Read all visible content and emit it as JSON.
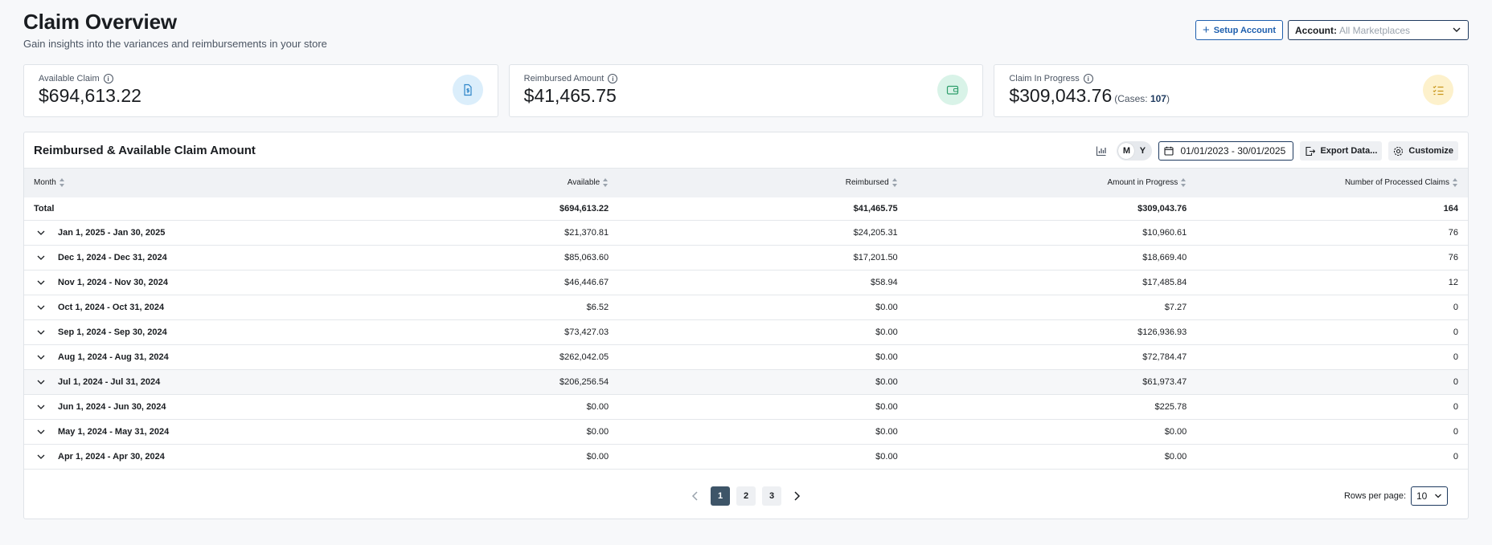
{
  "header": {
    "title": "Claim Overview",
    "subtitle": "Gain insights into the variances and reimbursements in your store"
  },
  "actions": {
    "setup_label": "Setup Account",
    "account_label": "Account:",
    "account_value": "All Marketplaces"
  },
  "cards": [
    {
      "label": "Available Claim",
      "value": "$694,613.22",
      "icon": "document-dollar-icon",
      "icon_color": "#2f86c9"
    },
    {
      "label": "Reimbursed Amount",
      "value": "$41,465.75",
      "icon": "wallet-icon",
      "icon_color": "#2e9e6b"
    },
    {
      "label": "Claim In Progress",
      "value": "$309,043.76",
      "cases_prefix": "(Cases: ",
      "cases": "107",
      "cases_suffix": ")",
      "icon": "checklist-icon",
      "icon_color": "#c9961a"
    }
  ],
  "panel": {
    "title": "Reimbursed & Available Claim Amount",
    "toggle_m": "M",
    "toggle_y": "Y",
    "date_range": "01/01/2023 - 30/01/2025",
    "export_label": "Export Data...",
    "customize_label": "Customize"
  },
  "table": {
    "columns": [
      "Month",
      "Available",
      "Reimbursed",
      "Amount in Progress",
      "Number of Processed Claims"
    ],
    "total": {
      "label": "Total",
      "available": "$694,613.22",
      "reimbursed": "$41,465.75",
      "in_progress": "$309,043.76",
      "claims": "164"
    },
    "rows": [
      {
        "month": "Jan 1, 2025 - Jan 30, 2025",
        "available": "$21,370.81",
        "reimbursed": "$24,205.31",
        "in_progress": "$10,960.61",
        "claims": "76"
      },
      {
        "month": "Dec 1, 2024 - Dec 31, 2024",
        "available": "$85,063.60",
        "reimbursed": "$17,201.50",
        "in_progress": "$18,669.40",
        "claims": "76"
      },
      {
        "month": "Nov 1, 2024 - Nov 30, 2024",
        "available": "$46,446.67",
        "reimbursed": "$58.94",
        "in_progress": "$17,485.84",
        "claims": "12"
      },
      {
        "month": "Oct 1, 2024 - Oct 31, 2024",
        "available": "$6.52",
        "reimbursed": "$0.00",
        "in_progress": "$7.27",
        "claims": "0"
      },
      {
        "month": "Sep 1, 2024 - Sep 30, 2024",
        "available": "$73,427.03",
        "reimbursed": "$0.00",
        "in_progress": "$126,936.93",
        "claims": "0"
      },
      {
        "month": "Aug 1, 2024 - Aug 31, 2024",
        "available": "$262,042.05",
        "reimbursed": "$0.00",
        "in_progress": "$72,784.47",
        "claims": "0"
      },
      {
        "month": "Jul 1, 2024 - Jul 31, 2024",
        "available": "$206,256.54",
        "reimbursed": "$0.00",
        "in_progress": "$61,973.47",
        "claims": "0"
      },
      {
        "month": "Jun 1, 2024 - Jun 30, 2024",
        "available": "$0.00",
        "reimbursed": "$0.00",
        "in_progress": "$225.78",
        "claims": "0"
      },
      {
        "month": "May 1, 2024 - May 31, 2024",
        "available": "$0.00",
        "reimbursed": "$0.00",
        "in_progress": "$0.00",
        "claims": "0"
      },
      {
        "month": "Apr 1, 2024 - Apr 30, 2024",
        "available": "$0.00",
        "reimbursed": "$0.00",
        "in_progress": "$0.00",
        "claims": "0"
      }
    ]
  },
  "pagination": {
    "pages": [
      "1",
      "2",
      "3"
    ],
    "current": "1",
    "rows_label": "Rows per page:",
    "rows_value": "10"
  }
}
